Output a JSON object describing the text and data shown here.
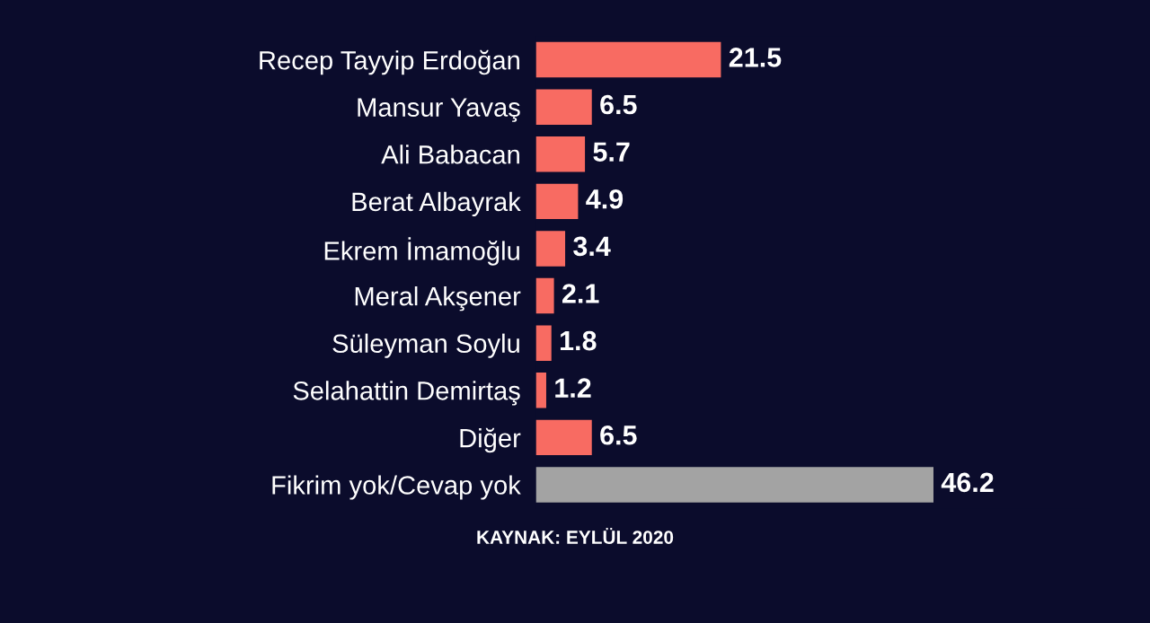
{
  "chart_data": {
    "type": "bar",
    "orientation": "horizontal",
    "categories": [
      "Recep Tayyip Erdoğan",
      "Mansur Yavaş",
      "Ali Babacan",
      "Berat Albayrak",
      "Ekrem İmamoğlu",
      "Meral Akşener",
      "Süleyman Soylu",
      "Selahattin Demirtaş",
      "Diğer",
      "Fikrim yok/Cevap yok"
    ],
    "values": [
      21.5,
      6.5,
      5.7,
      4.9,
      3.4,
      2.1,
      1.8,
      1.2,
      6.5,
      46.2
    ],
    "colors": [
      "#f86b62",
      "#f86b62",
      "#f86b62",
      "#f86b62",
      "#f86b62",
      "#f86b62",
      "#f86b62",
      "#f86b62",
      "#f86b62",
      "#a3a3a3"
    ],
    "data_labels": true,
    "tick_labels": "y",
    "grid": false,
    "annotations": [
      "KAYNAK: EYLÜL 2020"
    ]
  }
}
